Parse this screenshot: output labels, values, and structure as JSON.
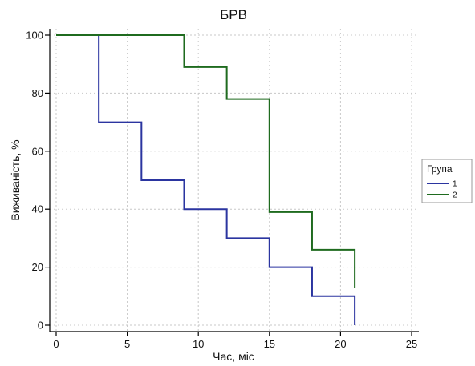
{
  "chart_data": {
    "type": "line",
    "step": true,
    "title": "БРВ",
    "xlabel": "Час, міс",
    "ylabel": "Виживаність, %",
    "xlim": [
      0,
      25
    ],
    "ylim": [
      0,
      100
    ],
    "xticks": [
      0,
      5,
      10,
      15,
      20,
      25
    ],
    "yticks": [
      0,
      20,
      40,
      60,
      80,
      100
    ],
    "grid": true,
    "legend": {
      "title": "Група",
      "position": "right"
    },
    "series": [
      {
        "name": "1",
        "color": "#2b35a0",
        "x": [
          0,
          3,
          6,
          9,
          12,
          15,
          18,
          21,
          21
        ],
        "y": [
          100,
          70,
          50,
          40,
          30,
          20,
          10,
          10,
          0
        ]
      },
      {
        "name": "2",
        "color": "#1f6b1f",
        "x": [
          0,
          9,
          12,
          15,
          18,
          21,
          21
        ],
        "y": [
          100,
          89,
          78,
          39,
          26,
          26,
          13
        ]
      }
    ]
  }
}
